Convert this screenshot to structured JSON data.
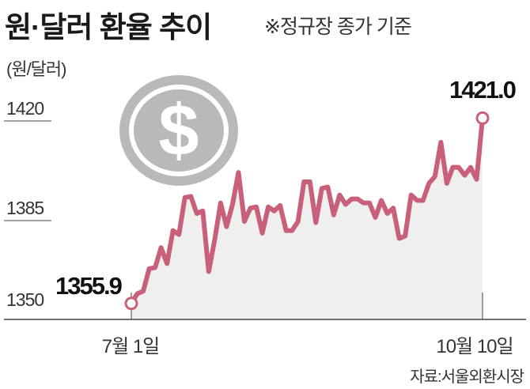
{
  "title": "원·달러 환율 추이",
  "subtitle": "※정규장 종가 기준",
  "unit": "(원/달러)",
  "source": "자료:서울외환시장",
  "colors": {
    "line": "#c9607a",
    "fill": "#efefef",
    "coin": "#b9b9b9"
  },
  "icon": "dollar-coin-icon",
  "chart_data": {
    "type": "area",
    "ylabel": "(원/달러)",
    "ylim": [
      1350,
      1421
    ],
    "yticks": [
      1350,
      1385,
      1420
    ],
    "x_tick_labels": [
      "7월 1일",
      "10월 10일"
    ],
    "annotations": {
      "start": "1355.9",
      "end": "1421.0"
    },
    "values": [
      1355.9,
      1359.3,
      1360.2,
      1368.1,
      1368.5,
      1375.5,
      1369.9,
      1381.5,
      1380.1,
      1393.1,
      1393.5,
      1387.5,
      1388.4,
      1367.1,
      1378.2,
      1391.2,
      1382.9,
      1390.7,
      1401.9,
      1384.7,
      1389.4,
      1389.8,
      1380.6,
      1389.8,
      1388.4,
      1390.3,
      1381.5,
      1381.5,
      1384.7,
      1398.6,
      1398.6,
      1384.3,
      1396.3,
      1396.8,
      1387.0,
      1394.0,
      1390.7,
      1392.6,
      1392.6,
      1391.2,
      1391.2,
      1386.1,
      1392.1,
      1387.5,
      1389.4,
      1378.7,
      1379.6,
      1394.0,
      1392.1,
      1392.1,
      1398.1,
      1400.5,
      1412.5,
      1398.1,
      1403.7,
      1403.7,
      1400.9,
      1403.7,
      1399.5,
      1421.0
    ],
    "grid": false
  }
}
